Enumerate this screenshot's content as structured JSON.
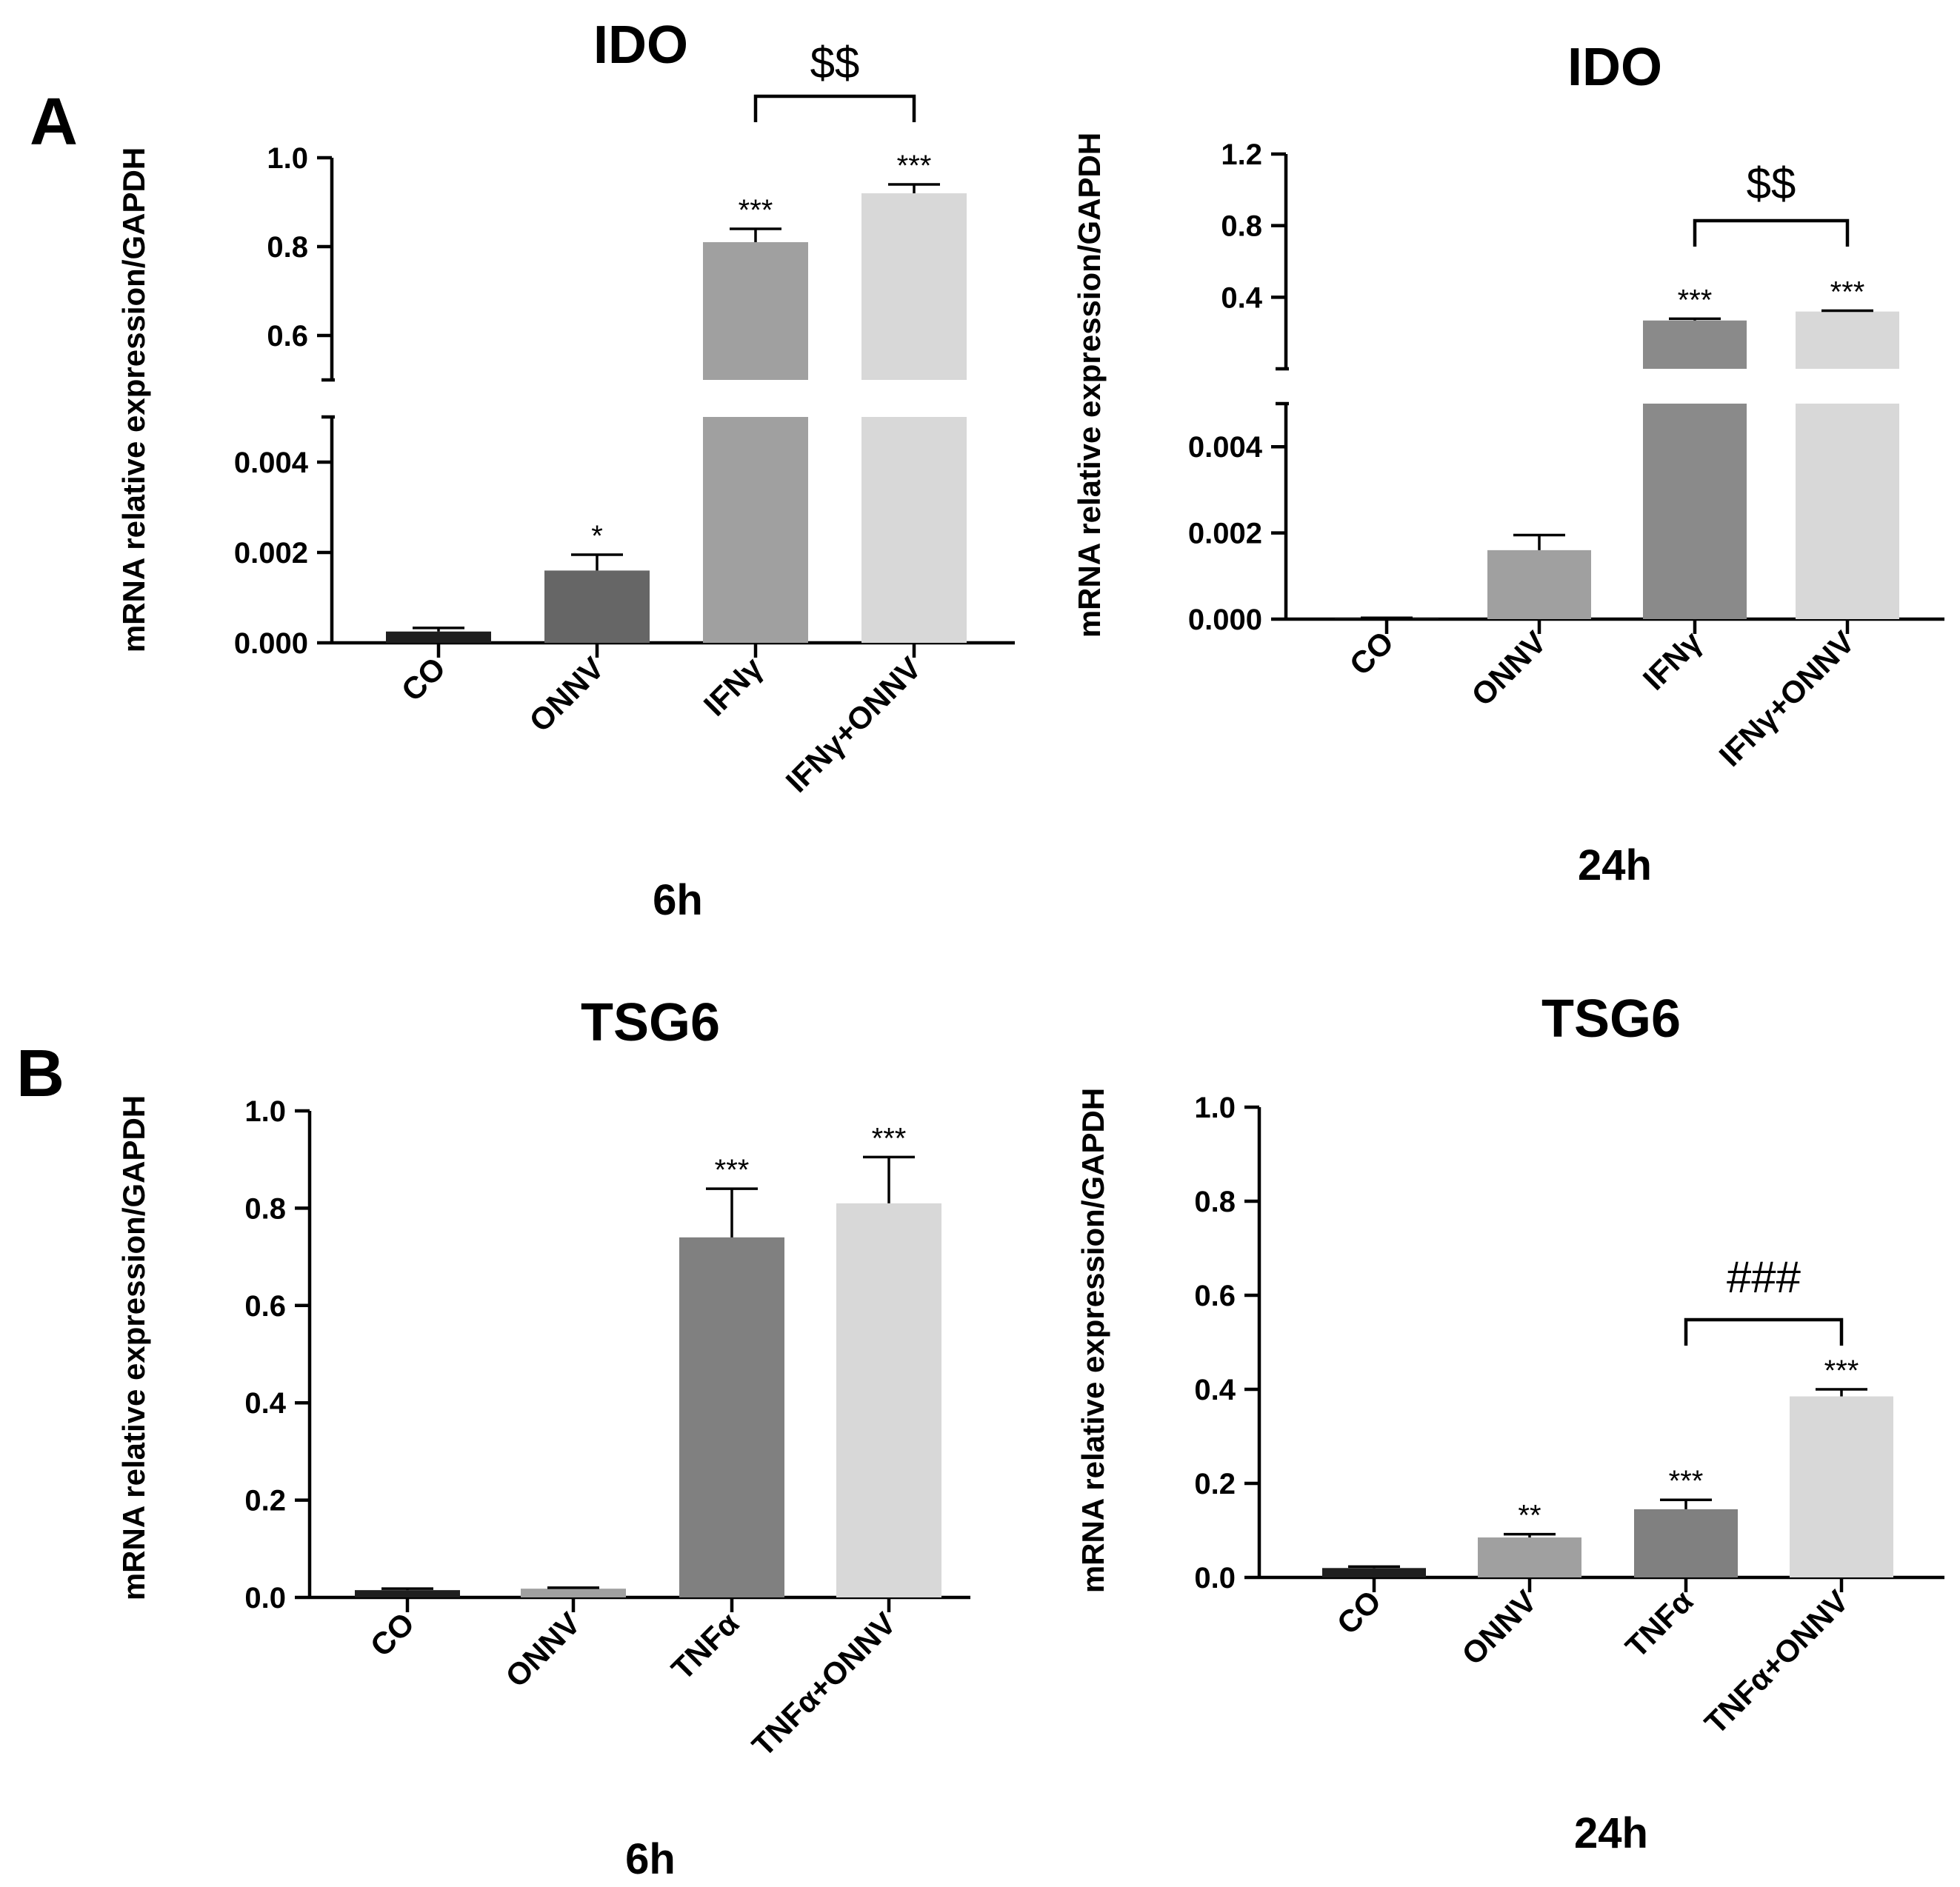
{
  "panels": [
    {
      "letter": "A"
    },
    {
      "letter": "B"
    }
  ],
  "chart_data": [
    {
      "type": "bar",
      "panel": "A",
      "title": "IDO",
      "subtitle": "6h",
      "ylabel": "mRNA relative expression/GAPDH",
      "categories": [
        "CO",
        "ONNV",
        "IFNγ",
        "IFNγ+ONNV"
      ],
      "values": [
        0.00025,
        0.0016,
        0.81,
        0.92
      ],
      "errors": [
        8e-05,
        0.00035,
        0.03,
        0.02
      ],
      "colors": [
        "#1f1f1f",
        "#666666",
        "#a0a0a0",
        "#d8d8d8"
      ],
      "broken_axis": true,
      "lower_range": [
        0,
        0.005
      ],
      "upper_range": [
        0.5,
        1.0
      ],
      "lower_ticks": [
        0.0,
        0.002,
        0.004
      ],
      "lower_tick_labels": [
        "0.000",
        "0.002",
        "0.004"
      ],
      "upper_ticks": [
        0.6,
        0.8,
        1.0
      ],
      "upper_tick_labels": [
        "0.6",
        "0.8",
        "1.0"
      ],
      "significance": [
        "",
        "*",
        "***",
        "***"
      ],
      "comparison": {
        "from": 2,
        "to": 3,
        "label": "$$"
      }
    },
    {
      "type": "bar",
      "panel": "A",
      "title": "IDO",
      "subtitle": "24h",
      "ylabel": "mRNA relative expression/GAPDH",
      "categories": [
        "CO",
        "ONNV",
        "IFNγ",
        "IFNγ+ONNV"
      ],
      "values": [
        2e-05,
        0.0016,
        0.27,
        0.32
      ],
      "errors": [
        1e-05,
        0.00035,
        0.01,
        0.005
      ],
      "colors": [
        "#1f1f1f",
        "#a0a0a0",
        "#8a8a8a",
        "#d8d8d8"
      ],
      "broken_axis": true,
      "lower_range": [
        0,
        0.005
      ],
      "upper_range": [
        0.0,
        1.2
      ],
      "lower_ticks": [
        0.0,
        0.002,
        0.004
      ],
      "lower_tick_labels": [
        "0.000",
        "0.002",
        "0.004"
      ],
      "upper_ticks": [
        0.4,
        0.8,
        1.2
      ],
      "upper_tick_labels": [
        "0.4",
        "0.8",
        "1.2"
      ],
      "significance": [
        "",
        "",
        "***",
        "***"
      ],
      "comparison": {
        "from": 2,
        "to": 3,
        "label": "$$"
      }
    },
    {
      "type": "bar",
      "panel": "B",
      "title": "TSG6",
      "subtitle": "6h",
      "ylabel": "mRNA relative expression/GAPDH",
      "categories": [
        "CO",
        "ONNV",
        "TNFα",
        "TNFα+ONNV"
      ],
      "values": [
        0.015,
        0.018,
        0.74,
        0.81
      ],
      "errors": [
        0.003,
        0.002,
        0.1,
        0.095
      ],
      "colors": [
        "#1f1f1f",
        "#a0a0a0",
        "#808080",
        "#d8d8d8"
      ],
      "broken_axis": false,
      "ylim": [
        0,
        1.0
      ],
      "yticks": [
        0.0,
        0.2,
        0.4,
        0.6,
        0.8,
        1.0
      ],
      "ytick_labels": [
        "0.0",
        "0.2",
        "0.4",
        "0.6",
        "0.8",
        "1.0"
      ],
      "significance": [
        "",
        "",
        "***",
        "***"
      ],
      "comparison": null
    },
    {
      "type": "bar",
      "panel": "B",
      "title": "TSG6",
      "subtitle": "24h",
      "ylabel": "mRNA relative expression/GAPDH",
      "categories": [
        "CO",
        "ONNV",
        "TNFα",
        "TNFα+ONNV"
      ],
      "values": [
        0.02,
        0.085,
        0.145,
        0.385
      ],
      "errors": [
        0.003,
        0.007,
        0.02,
        0.015
      ],
      "colors": [
        "#1f1f1f",
        "#a0a0a0",
        "#808080",
        "#d8d8d8"
      ],
      "broken_axis": false,
      "ylim": [
        0,
        1.0
      ],
      "yticks": [
        0.0,
        0.2,
        0.4,
        0.6,
        0.8,
        1.0
      ],
      "ytick_labels": [
        "0.0",
        "0.2",
        "0.4",
        "0.6",
        "0.8",
        "1.0"
      ],
      "significance": [
        "",
        "**",
        "***",
        "***"
      ],
      "comparison": {
        "from": 2,
        "to": 3,
        "label": "###"
      }
    }
  ]
}
